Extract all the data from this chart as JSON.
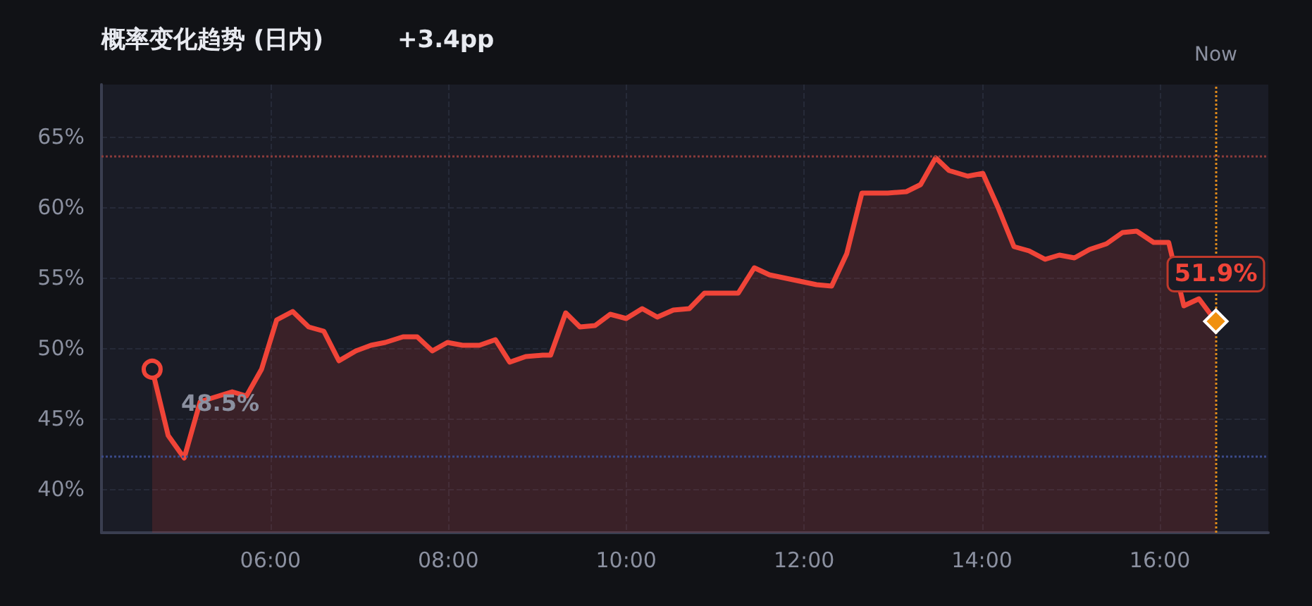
{
  "chart_data": {
    "type": "area",
    "title": "概率变化趋势 (日内)",
    "subtitle": "+3.4pp",
    "x": [
      4.67,
      4.85,
      5.03,
      5.21,
      5.57,
      5.73,
      5.9,
      6.07,
      6.25,
      6.43,
      6.6,
      6.77,
      6.96,
      7.13,
      7.29,
      7.49,
      7.65,
      7.82,
      7.99,
      8.16,
      8.35,
      8.53,
      8.69,
      8.87,
      9.06,
      9.15,
      9.32,
      9.48,
      9.65,
      9.82,
      10.0,
      10.18,
      10.35,
      10.53,
      10.71,
      10.88,
      11.07,
      11.26,
      11.44,
      11.61,
      12.14,
      12.31,
      12.48,
      12.65,
      12.94,
      13.15,
      13.31,
      13.48,
      13.63,
      13.84,
      14.01,
      14.18,
      14.36,
      14.53,
      14.71,
      14.87,
      15.04,
      15.21,
      15.4,
      15.58,
      15.74,
      15.93,
      16.1,
      16.27,
      16.44,
      16.63
    ],
    "series": [
      {
        "color": "#f04438",
        "values": [
          48.5,
          43.8,
          42.2,
          46.2,
          46.9,
          46.6,
          48.5,
          52.0,
          52.6,
          51.5,
          51.2,
          49.1,
          49.8,
          50.2,
          50.4,
          50.8,
          50.8,
          49.8,
          50.4,
          50.2,
          50.2,
          50.6,
          49.0,
          49.4,
          49.5,
          49.5,
          52.5,
          51.5,
          51.6,
          52.4,
          52.1,
          52.8,
          52.2,
          52.7,
          52.8,
          53.9,
          53.9,
          53.9,
          55.7,
          55.2,
          54.5,
          54.4,
          56.7,
          61.0,
          61.0,
          61.1,
          61.6,
          63.5,
          62.6,
          62.2,
          62.4,
          60.0,
          57.2,
          56.9,
          56.3,
          56.6,
          56.4,
          57.0,
          57.4,
          58.2,
          58.3,
          57.5,
          57.5,
          53.0,
          53.5,
          51.9
        ]
      }
    ],
    "xlim": [
      4.1,
      17.22
    ],
    "xticks": [
      {
        "value": 6,
        "label": "06:00"
      },
      {
        "value": 8,
        "label": "08:00"
      },
      {
        "value": 10,
        "label": "10:00"
      },
      {
        "value": 12,
        "label": "12:00"
      },
      {
        "value": 14,
        "label": "14:00"
      },
      {
        "value": 16,
        "label": "16:00"
      }
    ],
    "ylim": [
      36.9,
      68.7
    ],
    "yticks": [
      {
        "value": 40,
        "label": "40%"
      },
      {
        "value": 45,
        "label": "45%"
      },
      {
        "value": 50,
        "label": "50%"
      },
      {
        "value": 55,
        "label": "55%"
      },
      {
        "value": 60,
        "label": "60%"
      },
      {
        "value": 65,
        "label": "65%"
      }
    ],
    "grid": true,
    "marker": "none",
    "line_style": "solid",
    "ref_lines": [
      {
        "axis": "y",
        "value": 63.6,
        "color": "#8a3b3b",
        "line_style": "dotted"
      },
      {
        "axis": "y",
        "value": 42.3,
        "color": "#3b4a8a",
        "line_style": "dotted"
      },
      {
        "axis": "x",
        "value": 16.63,
        "label": "Now",
        "color": "#e08a1a",
        "line_style": "dotted"
      }
    ],
    "annotations": [
      {
        "text": "48.5%",
        "x": 4.67,
        "y": 48.5
      },
      {
        "text": "51.9%",
        "x": 16.63,
        "y": 51.9
      }
    ]
  }
}
